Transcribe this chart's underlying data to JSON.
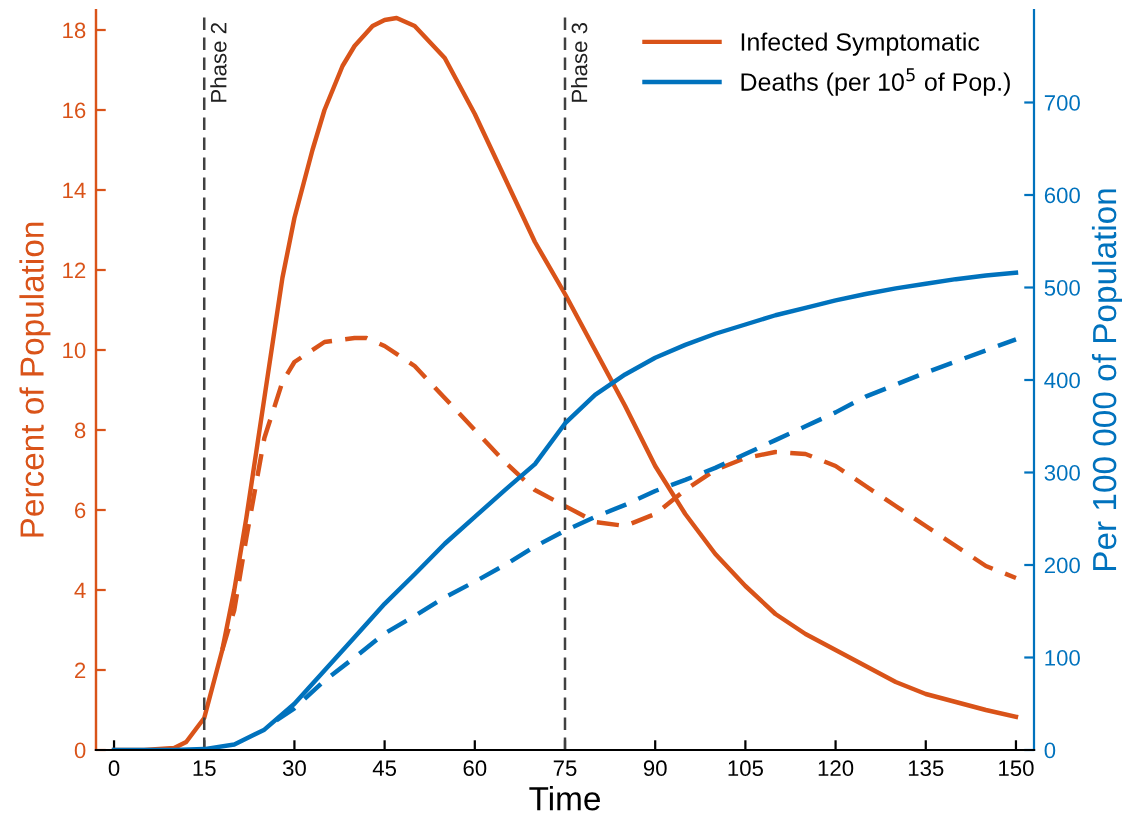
{
  "chart_data": {
    "type": "line",
    "xlabel": "Time",
    "ylabel": "Percent of Population",
    "y2label": "Per 100 000 of Population",
    "xlim": [
      -3,
      153
    ],
    "xticks": [
      0,
      15,
      30,
      45,
      60,
      75,
      90,
      105,
      120,
      135,
      150
    ],
    "ylim": [
      0,
      18.5
    ],
    "yticks": [
      0,
      2,
      4,
      6,
      8,
      10,
      12,
      14,
      16,
      18
    ],
    "y2lim": [
      0,
      800
    ],
    "y2ticks": [
      0,
      100,
      200,
      300,
      400,
      500,
      600,
      700
    ],
    "grid": false,
    "legend": "top right",
    "ref_lines": [
      {
        "axis": "x",
        "value": 15,
        "label": "Phase 2",
        "color": "#404040",
        "line_style": "dashed"
      },
      {
        "axis": "x",
        "value": 75,
        "label": "Phase 3",
        "color": "#404040",
        "line_style": "dashed"
      }
    ],
    "series": [
      {
        "name": "Infected Symptomatic",
        "color": "#d95319",
        "line_style": "solid",
        "x": [
          0,
          5,
          10,
          12,
          15,
          18,
          20,
          22,
          25,
          28,
          30,
          33,
          35,
          38,
          40,
          43,
          45,
          47,
          50,
          55,
          60,
          65,
          70,
          75,
          80,
          85,
          90,
          95,
          100,
          105,
          110,
          115,
          120,
          125,
          130,
          135,
          140,
          145,
          150
        ],
        "values": [
          0,
          0,
          0.05,
          0.2,
          0.8,
          2.5,
          4,
          5.8,
          8.8,
          11.8,
          13.3,
          15,
          16,
          17.1,
          17.6,
          18.1,
          18.25,
          18.3,
          18.1,
          17.3,
          15.9,
          14.3,
          12.7,
          11.4,
          10,
          8.6,
          7.1,
          5.9,
          4.9,
          4.1,
          3.4,
          2.9,
          2.5,
          2.1,
          1.7,
          1.4,
          1.2,
          1.0,
          0.83
        ]
      },
      {
        "name": "Deaths (per 10$^{5}$ of Pop.)",
        "axis": "y2",
        "color": "#0072bd",
        "line_style": "solid",
        "x": [
          0,
          10,
          15,
          20,
          25,
          30,
          35,
          40,
          45,
          50,
          55,
          60,
          65,
          70,
          75,
          80,
          85,
          90,
          95,
          100,
          105,
          110,
          115,
          120,
          125,
          130,
          135,
          140,
          145,
          150
        ],
        "values": [
          0,
          0,
          1,
          6,
          22,
          50,
          86,
          122,
          158,
          190,
          223,
          252,
          281,
          309,
          353,
          384,
          406,
          424,
          438,
          450,
          460,
          470,
          478,
          486,
          493,
          499,
          504,
          509,
          513,
          516
        ]
      },
      {
        "color": "#d95319",
        "line_style": "dashed",
        "x": [
          18,
          20,
          22,
          25,
          28,
          30,
          35,
          40,
          42,
          45,
          50,
          55,
          60,
          65,
          70,
          75,
          80,
          85,
          90,
          95,
          100,
          105,
          110,
          115,
          120,
          125,
          130,
          135,
          140,
          145,
          150
        ],
        "values": [
          2.5,
          3.5,
          5.3,
          7.8,
          9.2,
          9.7,
          10.2,
          10.3,
          10.3,
          10.1,
          9.6,
          8.8,
          8.0,
          7.2,
          6.5,
          6.1,
          5.7,
          5.6,
          5.9,
          6.5,
          7.0,
          7.3,
          7.45,
          7.4,
          7.1,
          6.6,
          6.1,
          5.6,
          5.1,
          4.6,
          4.3
        ]
      },
      {
        "axis": "y2",
        "color": "#0072bd",
        "line_style": "dashed",
        "x": [
          27,
          30,
          35,
          40,
          45,
          50,
          55,
          60,
          65,
          70,
          75,
          80,
          85,
          90,
          95,
          100,
          105,
          110,
          115,
          120,
          125,
          130,
          135,
          140,
          145,
          150
        ],
        "values": [
          32,
          45,
          75,
          100,
          126,
          145,
          165,
          182,
          200,
          220,
          237,
          252,
          265,
          280,
          292,
          305,
          320,
          335,
          350,
          365,
          382,
          395,
          408,
          420,
          432,
          444
        ]
      }
    ]
  }
}
